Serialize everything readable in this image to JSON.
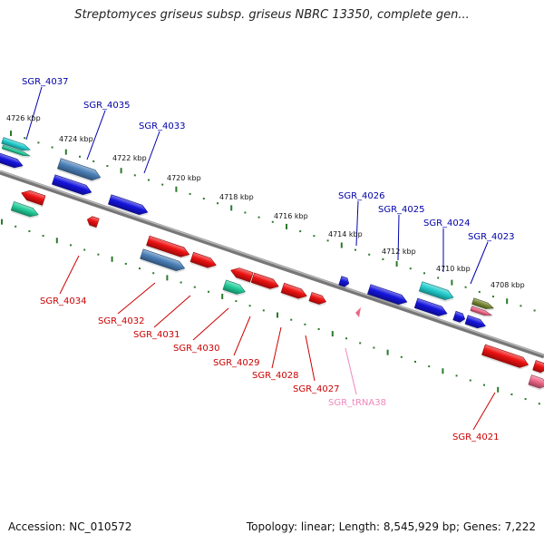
{
  "title": "Streptomyces griseus subsp. griseus NBRC 13350, complete gen...",
  "footer": {
    "accession": "Accession: NC_010572",
    "topology": "Topology: linear; Length: 8,545,929 bp; Genes: 7,222"
  },
  "colors": {
    "red": "#ee1111",
    "blue": "#1414dd",
    "steel": "#4a7fb8",
    "cyan": "#22cccc",
    "teal": "#22cc99",
    "olive": "#778833",
    "pink": "#ee6688",
    "tick": "#2a7a2a",
    "upper_label": "#0000aa",
    "lower_label": "#cc0000",
    "trna_label": "#ee88bb",
    "backbone": "#888888"
  },
  "kbp_labels": [
    "4726 kbp",
    "4724 kbp",
    "4722 kbp",
    "4720 kbp",
    "4718 kbp",
    "4716 kbp",
    "4714 kbp",
    "4712 kbp",
    "4710 kbp",
    "4708 kbp"
  ],
  "upper_genes": [
    "SGR_4037",
    "SGR_4035",
    "SGR_4033",
    "SGR_4026",
    "SGR_4025",
    "SGR_4024",
    "SGR_4023"
  ],
  "lower_genes": [
    "SGR_4034",
    "SGR_4032",
    "SGR_4031",
    "SGR_4030",
    "SGR_4029",
    "SGR_4028",
    "SGR_4027",
    "SGR_4021"
  ],
  "trna_gene": "SGR_tRNA38"
}
